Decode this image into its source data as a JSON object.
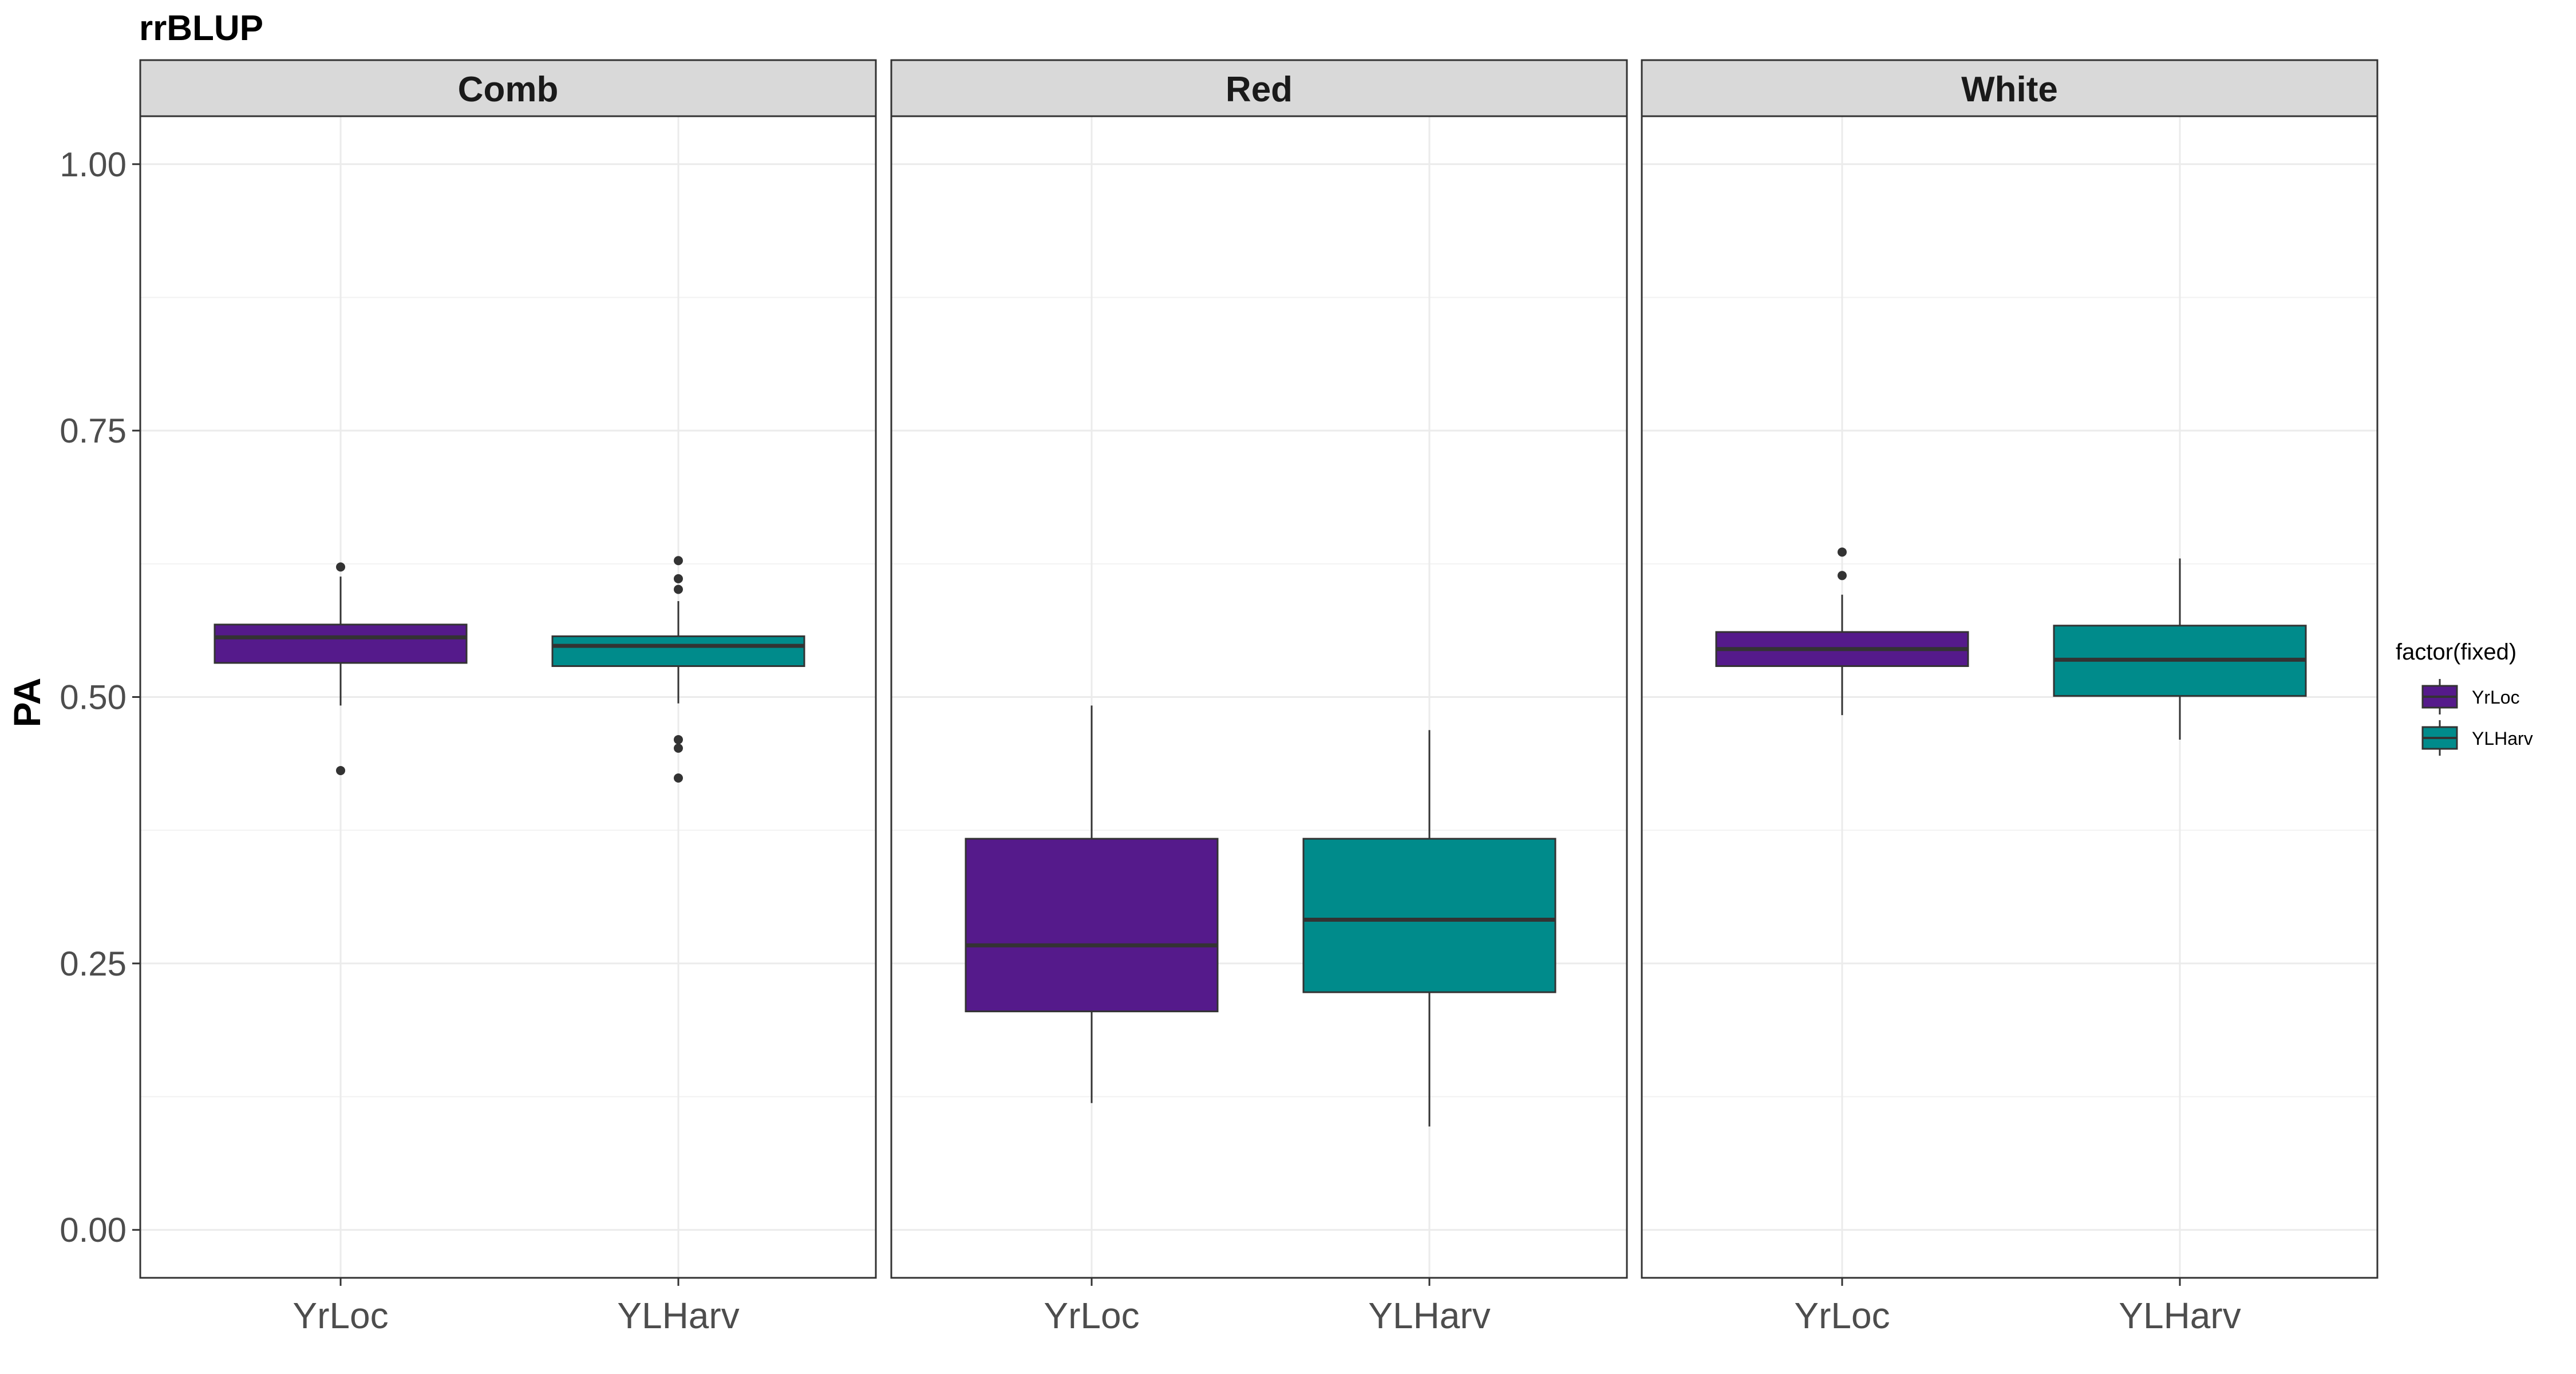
{
  "chart_data": {
    "type": "boxplot",
    "title": "rrBLUP",
    "xlabel": "",
    "ylabel": "PA",
    "ylim": [
      -0.045,
      1.045
    ],
    "yticks": [
      0.0,
      0.25,
      0.5,
      0.75,
      1.0
    ],
    "ytick_labels": [
      "0.00",
      "0.25",
      "0.50",
      "0.75",
      "1.00"
    ],
    "categories": [
      "YrLoc",
      "YLHarv"
    ],
    "grid": true,
    "legend": {
      "title": "factor(fixed)",
      "position": "right",
      "entries": [
        "YrLoc",
        "YLHarv"
      ]
    },
    "colors": {
      "YrLoc": "#551A8B",
      "YLHarv": "#008B8B"
    },
    "panels": [
      {
        "name": "Comb",
        "boxes": [
          {
            "category": "YrLoc",
            "lower_whisker": 0.492,
            "q1": 0.532,
            "median": 0.556,
            "q3": 0.568,
            "upper_whisker": 0.613,
            "outliers": [
              0.622,
              0.431
            ]
          },
          {
            "category": "YLHarv",
            "lower_whisker": 0.494,
            "q1": 0.529,
            "median": 0.548,
            "q3": 0.557,
            "upper_whisker": 0.59,
            "outliers": [
              0.628,
              0.611,
              0.601,
              0.46,
              0.452,
              0.424
            ]
          }
        ]
      },
      {
        "name": "Red",
        "boxes": [
          {
            "category": "YrLoc",
            "lower_whisker": 0.119,
            "q1": 0.205,
            "median": 0.267,
            "q3": 0.367,
            "upper_whisker": 0.492,
            "outliers": []
          },
          {
            "category": "YLHarv",
            "lower_whisker": 0.097,
            "q1": 0.223,
            "median": 0.291,
            "q3": 0.367,
            "upper_whisker": 0.469,
            "outliers": []
          }
        ]
      },
      {
        "name": "White",
        "boxes": [
          {
            "category": "YrLoc",
            "lower_whisker": 0.483,
            "q1": 0.529,
            "median": 0.545,
            "q3": 0.561,
            "upper_whisker": 0.596,
            "outliers": [
              0.636,
              0.614
            ]
          },
          {
            "category": "YLHarv",
            "lower_whisker": 0.46,
            "q1": 0.501,
            "median": 0.535,
            "q3": 0.567,
            "upper_whisker": 0.63,
            "outliers": []
          }
        ]
      }
    ]
  }
}
